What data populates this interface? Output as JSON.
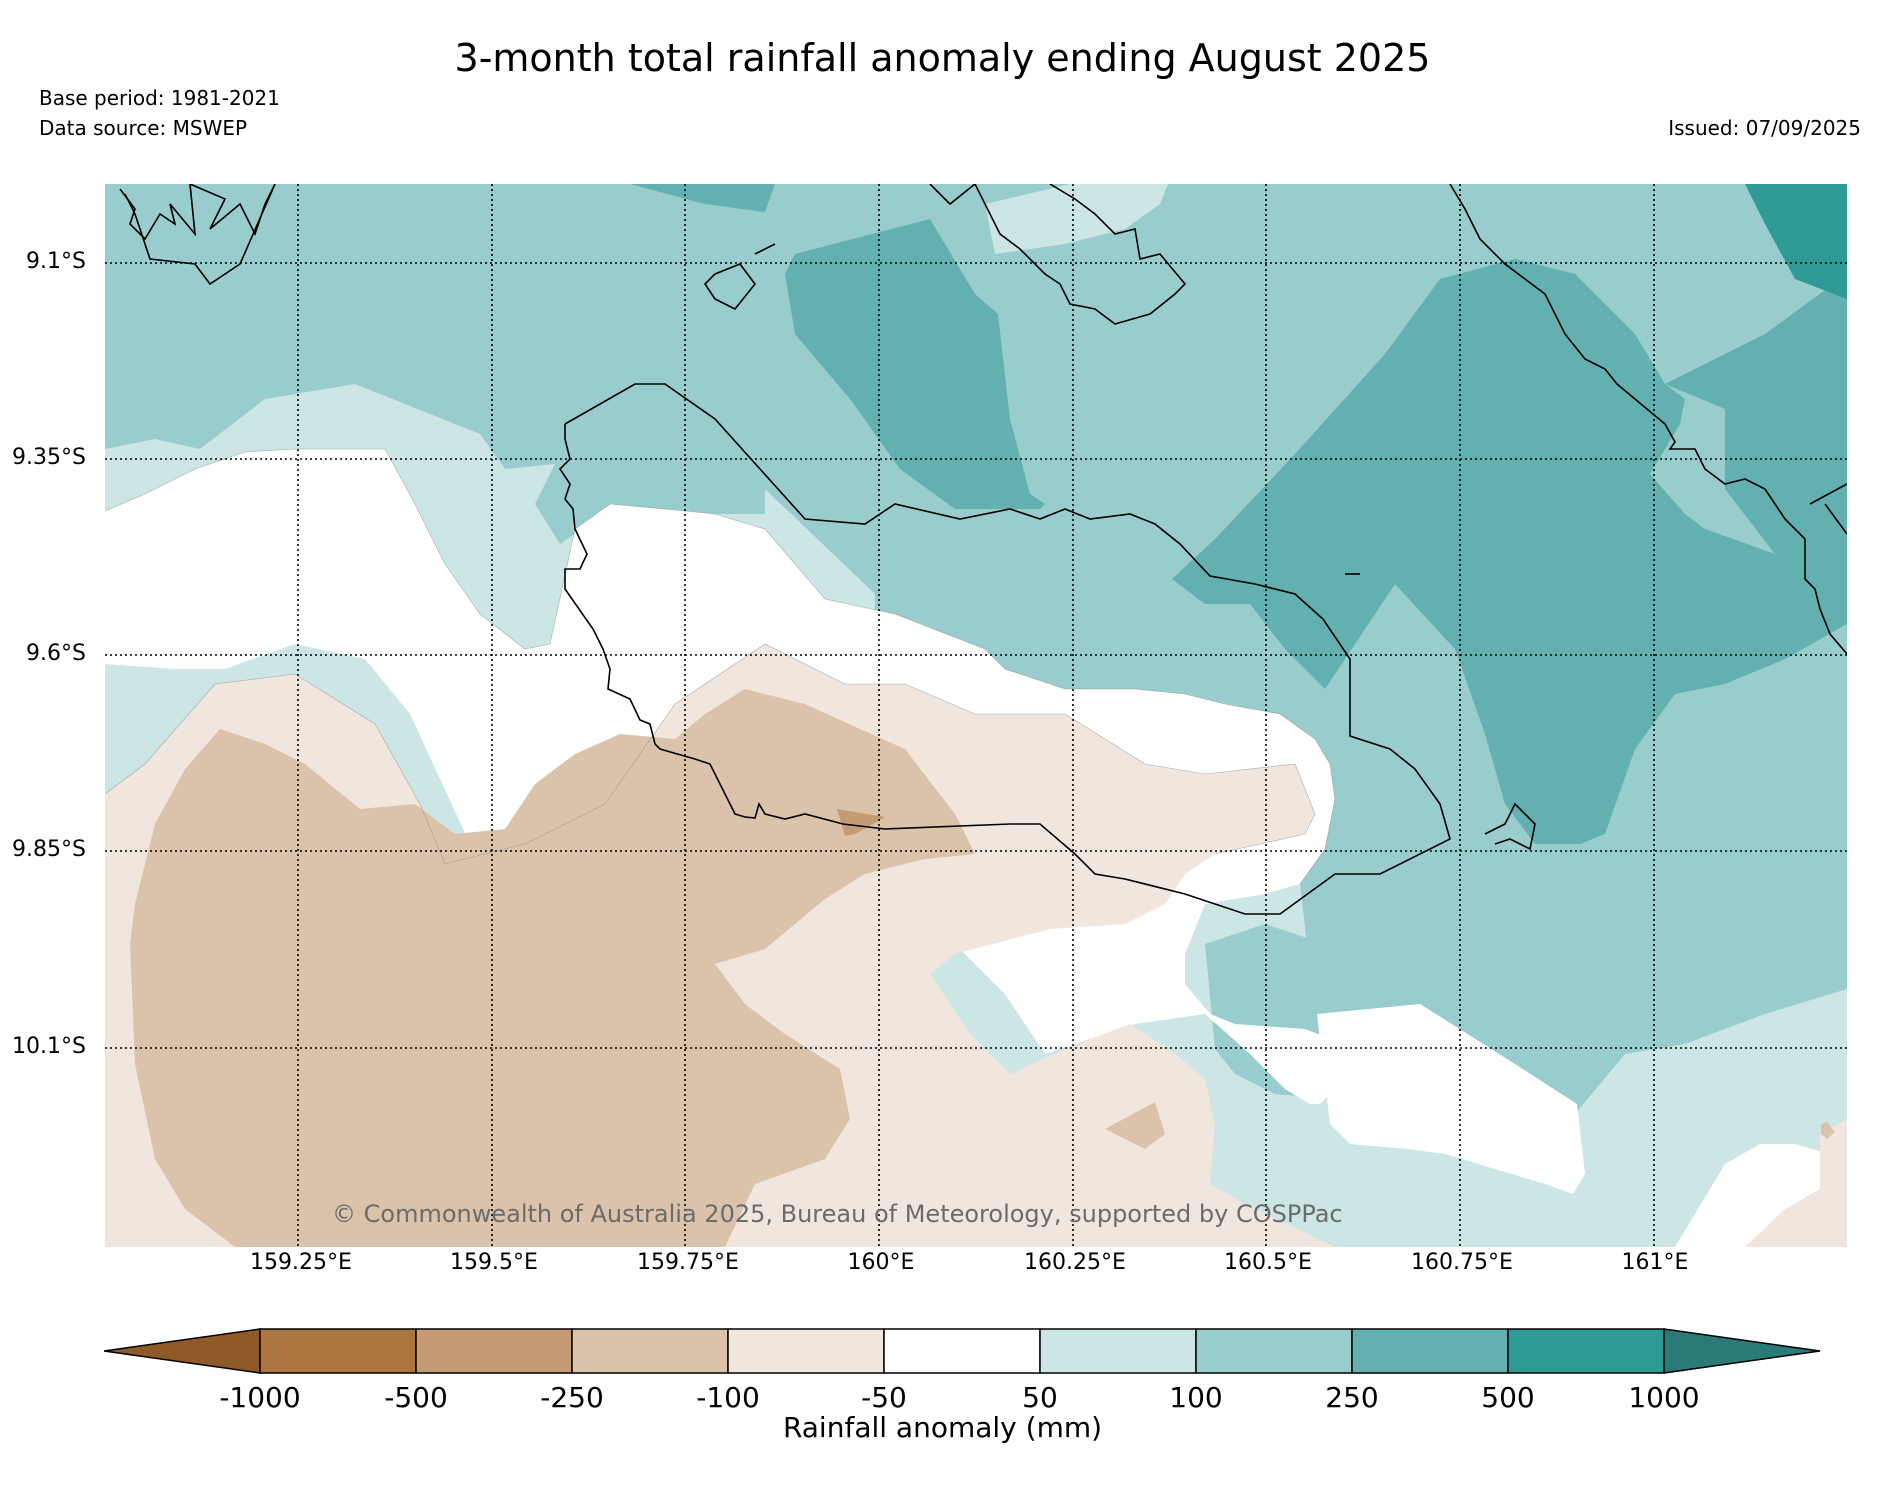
{
  "title": "3-month total rainfall anomaly ending August 2025",
  "meta": {
    "base_period": "Base period: 1981-2021",
    "data_source": "Data source: MSWEP",
    "issued": "Issued: 07/09/2025"
  },
  "map": {
    "lat_labels": [
      "9.1°S",
      "9.35°S",
      "9.6°S",
      "9.85°S",
      "10.1°S"
    ],
    "lon_labels": [
      "159.25°E",
      "159.5°E",
      "159.75°E",
      "160°E",
      "160.25°E",
      "160.5°E",
      "160.75°E",
      "161°E"
    ],
    "copyright": "© Commonwealth of Australia 2025, Bureau of Meteorology, supported by COSPPac"
  },
  "colorbar": {
    "label": "Rainfall anomaly (mm)",
    "ticks": [
      "-1000",
      "-500",
      "-250",
      "-100",
      "-50",
      "50",
      "100",
      "250",
      "500",
      "1000"
    ],
    "colors": [
      "#8f5a27",
      "#ad7640",
      "#c49b73",
      "#dbc3ab",
      "#f0e6dd",
      "#ffffff",
      "#cce6e6",
      "#99cccc",
      "#63b0b0",
      "#2f9995",
      "#2a7a78"
    ]
  }
}
